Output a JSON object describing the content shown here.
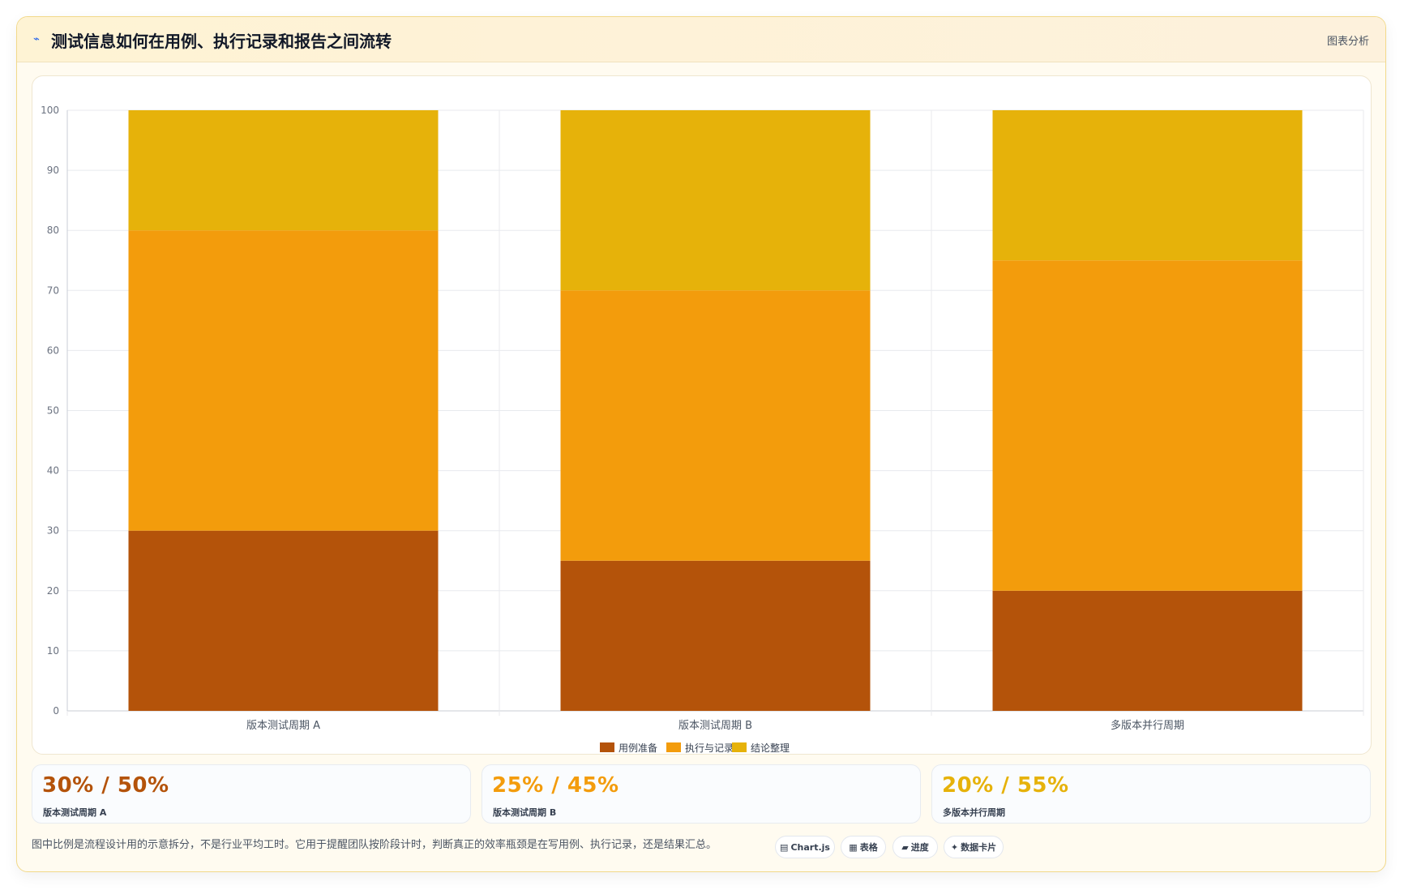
{
  "header": {
    "icon": "chart-line-icon",
    "title": "测试信息如何在用例、执行记录和报告之间流转",
    "tag": "图表分析"
  },
  "chart_data": {
    "type": "bar",
    "stacked": true,
    "title": "",
    "xlabel": "",
    "ylabel": "",
    "ylim": [
      0,
      100
    ],
    "yticks": [
      0,
      10,
      20,
      30,
      40,
      50,
      60,
      70,
      80,
      90,
      100
    ],
    "grid": true,
    "legend_position": "bottom",
    "categories": [
      "版本测试周期 A",
      "版本测试周期 B",
      "多版本并行周期"
    ],
    "series": [
      {
        "name": "用例准备",
        "color": "#b4530a",
        "values": [
          30,
          25,
          20
        ]
      },
      {
        "name": "执行与记录",
        "color": "#f39c0c",
        "values": [
          50,
          45,
          55
        ]
      },
      {
        "name": "结论整理",
        "color": "#e6b20a",
        "values": [
          20,
          30,
          25
        ]
      }
    ]
  },
  "stats": [
    {
      "value": "30% / 50%",
      "label": "版本测试周期 A",
      "color": "#b4530a"
    },
    {
      "value": "25% / 45%",
      "label": "版本测试周期 B",
      "color": "#f39c0c"
    },
    {
      "value": "20% / 55%",
      "label": "多版本并行周期",
      "color": "#e6b20a"
    }
  ],
  "footnote": "图中比例是流程设计用的示意拆分，不是行业平均工时。它用于提醒团队按阶段计时，判断真正的效率瓶颈是在写用例、执行记录，还是结果汇总。",
  "tools": [
    {
      "icon": "chart-icon",
      "glyph": "▤",
      "label": "Chart.js"
    },
    {
      "icon": "table-icon",
      "glyph": "▦",
      "label": "表格"
    },
    {
      "icon": "progress-icon",
      "glyph": "▰",
      "label": "进度"
    },
    {
      "icon": "sparkle-icon",
      "glyph": "✦",
      "label": "数据卡片"
    }
  ]
}
